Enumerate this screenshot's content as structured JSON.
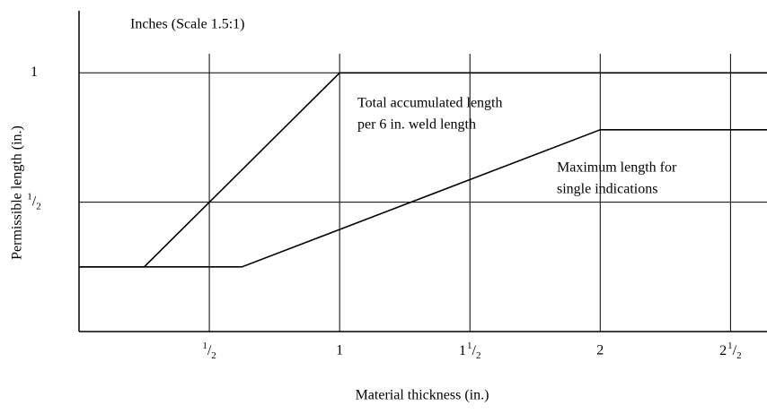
{
  "chart_data": {
    "type": "line",
    "xlabel": "Material thickness (in.)",
    "ylabel": "Permissible length (in.)",
    "annotations": [
      {
        "text": [
          "Inches (Scale 1.5:1)"
        ],
        "x": null
      },
      {
        "text": [
          "Total accumulated length",
          "per 6 in. weld length"
        ]
      },
      {
        "text": [
          "Maximum length for",
          "single indications"
        ]
      }
    ],
    "xlim": [
      0,
      2.64
    ],
    "ylim": [
      0,
      1.24
    ],
    "xticks": [
      {
        "value": 0.5,
        "label": "1/2"
      },
      1,
      {
        "value": 1.5,
        "label": "1 1/2"
      },
      2,
      {
        "value": 2.5,
        "label": "2 1/2"
      }
    ],
    "yticks": [
      {
        "value": 0.5,
        "label": "1/2"
      },
      1
    ],
    "grid": true,
    "series": [
      {
        "color": "#000000",
        "x": [
          0,
          0.25,
          1,
          2.64
        ],
        "values": [
          0.25,
          0.25,
          1,
          1
        ]
      },
      {
        "color": "#000000",
        "x": [
          0,
          0.625,
          2,
          2.64
        ],
        "values": [
          0.25,
          0.25,
          0.78,
          0.78
        ]
      }
    ]
  }
}
